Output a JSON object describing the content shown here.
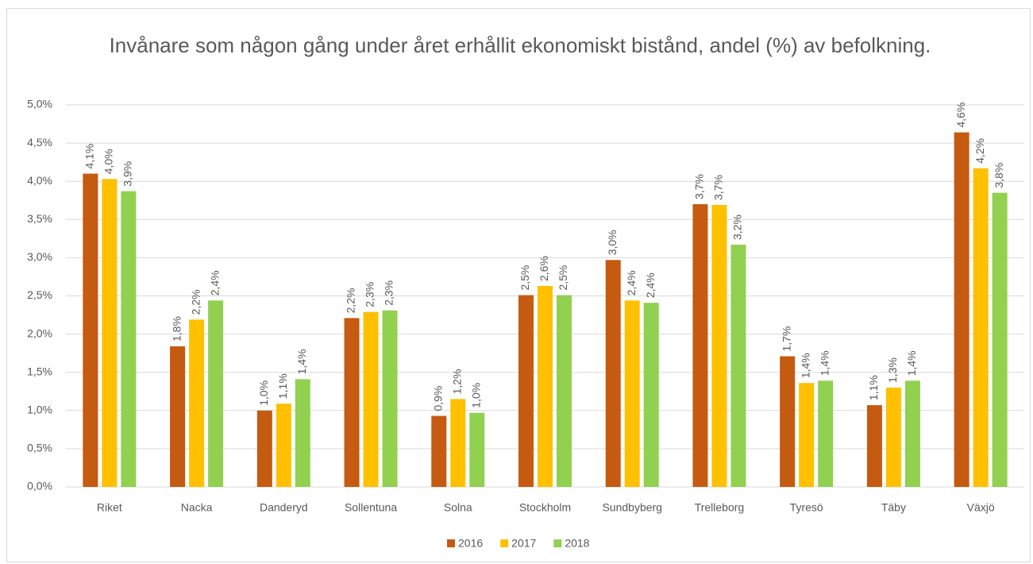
{
  "chart_data": {
    "type": "bar",
    "title": "Invånare som någon gång under året erhållit ekonomiskt bistånd, andel (%) av befolkning.",
    "categories": [
      "Riket",
      "Nacka",
      "Danderyd",
      "Sollentuna",
      "Solna",
      "Stockholm",
      "Sundbyberg",
      "Trelleborg",
      "Tyresö",
      "Täby",
      "Växjö"
    ],
    "series": [
      {
        "name": "2016",
        "color": "#c55a11",
        "values": [
          4.1,
          1.84,
          1.0,
          2.21,
          0.93,
          2.51,
          2.97,
          3.7,
          1.71,
          1.07,
          4.64
        ],
        "value_labels": [
          "4,1%",
          "1,8%",
          "1,0%",
          "2,2%",
          "0,9%",
          "2,5%",
          "3,0%",
          "3,7%",
          "1,7%",
          "1,1%",
          "4,6%"
        ]
      },
      {
        "name": "2017",
        "color": "#ffc000",
        "values": [
          4.03,
          2.19,
          1.09,
          2.29,
          1.15,
          2.63,
          2.44,
          3.69,
          1.36,
          1.3,
          4.17
        ],
        "value_labels": [
          "4,0%",
          "2,2%",
          "1,1%",
          "2,3%",
          "1,2%",
          "2,6%",
          "2,4%",
          "3,7%",
          "1,4%",
          "1,3%",
          "4,2%"
        ]
      },
      {
        "name": "2018",
        "color": "#92d050",
        "values": [
          3.87,
          2.44,
          1.41,
          2.31,
          0.97,
          2.51,
          2.41,
          3.17,
          1.39,
          1.39,
          3.85
        ],
        "value_labels": [
          "3,9%",
          "2,4%",
          "1,4%",
          "2,3%",
          "1,0%",
          "2,5%",
          "2,4%",
          "3,2%",
          "1,4%",
          "1,4%",
          "3,8%"
        ]
      }
    ],
    "ylim": [
      0,
      5
    ],
    "yticks": [
      {
        "value": 0,
        "label": "0,0%"
      },
      {
        "value": 0.5,
        "label": "0,5%"
      },
      {
        "value": 1,
        "label": "1,0%"
      },
      {
        "value": 1.5,
        "label": "1,5%"
      },
      {
        "value": 2,
        "label": "2,0%"
      },
      {
        "value": 2.5,
        "label": "2,5%"
      },
      {
        "value": 3,
        "label": "3,0%"
      },
      {
        "value": 3.5,
        "label": "3,5%"
      },
      {
        "value": 4,
        "label": "4,0%"
      },
      {
        "value": 4.5,
        "label": "4,5%"
      },
      {
        "value": 5,
        "label": "5,0%"
      }
    ],
    "grid": true,
    "legend": "bottom"
  }
}
